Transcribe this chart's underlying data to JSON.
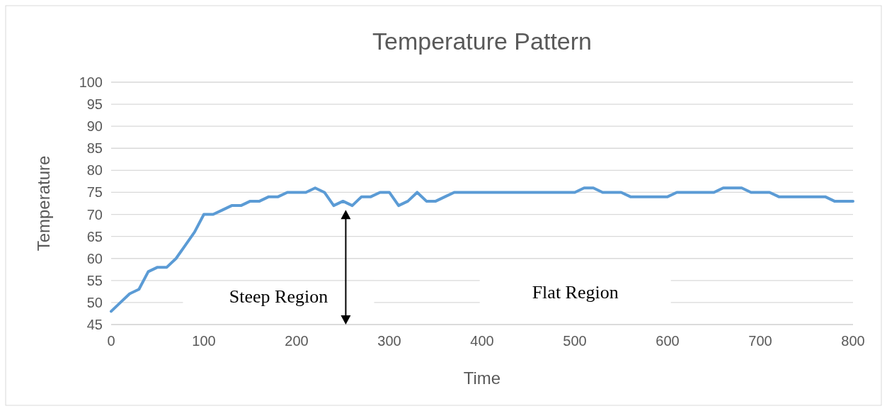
{
  "chart_data": {
    "type": "line",
    "title": "Temperature Pattern",
    "xlabel": "Time",
    "ylabel": "Temperature",
    "x": [
      0,
      10,
      20,
      30,
      40,
      50,
      60,
      70,
      80,
      90,
      100,
      110,
      120,
      130,
      140,
      150,
      160,
      170,
      180,
      190,
      200,
      210,
      220,
      230,
      240,
      250,
      260,
      270,
      280,
      290,
      300,
      310,
      320,
      330,
      340,
      350,
      360,
      370,
      380,
      390,
      400,
      410,
      420,
      430,
      440,
      450,
      460,
      470,
      480,
      490,
      500,
      510,
      520,
      530,
      540,
      550,
      560,
      570,
      580,
      590,
      600,
      610,
      620,
      630,
      640,
      650,
      660,
      670,
      680,
      690,
      700,
      710,
      720,
      730,
      740,
      750,
      760,
      770,
      780,
      790,
      800
    ],
    "series": [
      {
        "color": "#5b9bd5",
        "values": [
          48,
          50,
          52,
          53,
          57,
          58,
          58,
          60,
          63,
          66,
          70,
          70,
          71,
          72,
          72,
          73,
          73,
          74,
          74,
          75,
          75,
          75,
          76,
          75,
          72,
          73,
          72,
          74,
          74,
          75,
          75,
          72,
          73,
          75,
          73,
          73,
          74,
          75,
          75,
          75,
          75,
          75,
          75,
          75,
          75,
          75,
          75,
          75,
          75,
          75,
          75,
          76,
          76,
          75,
          75,
          75,
          74,
          74,
          74,
          74,
          74,
          75,
          75,
          75,
          75,
          75,
          76,
          76,
          76,
          75,
          75,
          75,
          74,
          74,
          74,
          74,
          74,
          74,
          73,
          73,
          73
        ]
      }
    ],
    "xlim": [
      0,
      800
    ],
    "xticks": [
      0,
      100,
      200,
      300,
      400,
      500,
      600,
      700,
      800
    ],
    "ylim": [
      45,
      100
    ],
    "yticks": [
      45,
      50,
      55,
      60,
      65,
      70,
      75,
      80,
      85,
      90,
      95,
      100
    ],
    "grid": "y",
    "marker": "none",
    "line_style": "solid",
    "annotations": [
      "Steep Region",
      "Flat Region"
    ]
  }
}
